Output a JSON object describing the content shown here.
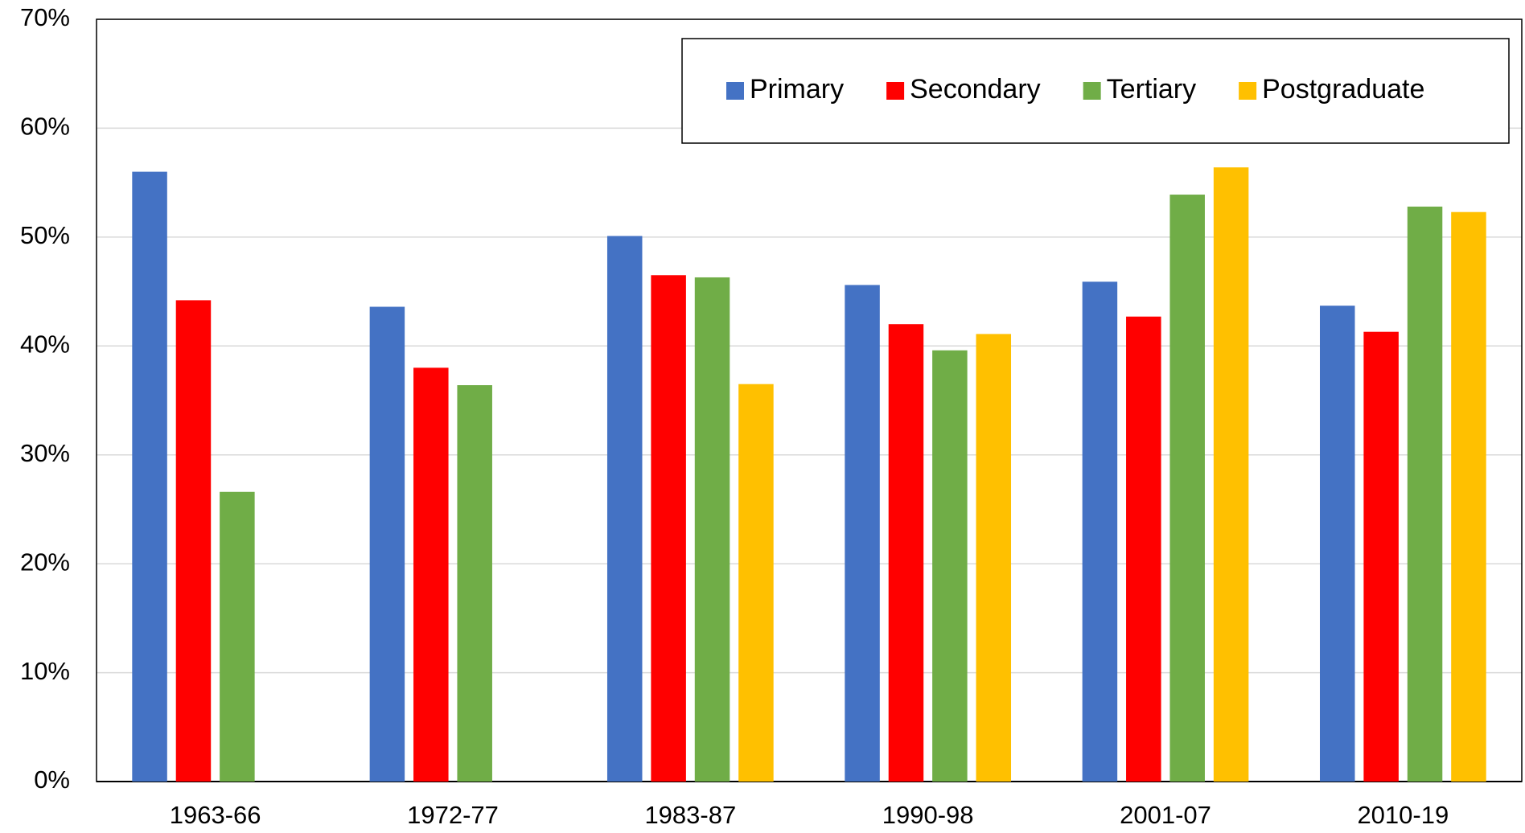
{
  "chart_data": {
    "type": "bar",
    "categories": [
      "1963-66",
      "1972-77",
      "1983-87",
      "1990-98",
      "2001-07",
      "2010-19"
    ],
    "series": [
      {
        "name": "Primary",
        "color": "#4472c4",
        "values": [
          56.0,
          43.6,
          50.1,
          45.6,
          45.9,
          43.7
        ]
      },
      {
        "name": "Secondary",
        "color": "#ff0000",
        "values": [
          44.2,
          38.0,
          46.5,
          42.0,
          42.7,
          41.3
        ]
      },
      {
        "name": "Tertiary",
        "color": "#70ad47",
        "values": [
          26.6,
          36.4,
          46.3,
          39.6,
          53.9,
          52.8
        ]
      },
      {
        "name": "Postgraduate",
        "color": "#ffc000",
        "values": [
          null,
          null,
          36.5,
          41.1,
          56.4,
          52.3
        ]
      }
    ],
    "ylim": [
      0,
      70
    ],
    "yticks": [
      {
        "value": 0,
        "label": "0%"
      },
      {
        "value": 10,
        "label": "10%"
      },
      {
        "value": 20,
        "label": "20%"
      },
      {
        "value": 30,
        "label": "30%"
      },
      {
        "value": 40,
        "label": "40%"
      },
      {
        "value": 50,
        "label": "50%"
      },
      {
        "value": 60,
        "label": "60%"
      },
      {
        "value": 70,
        "label": "70%"
      }
    ],
    "grid": true,
    "legend": "top-right"
  }
}
